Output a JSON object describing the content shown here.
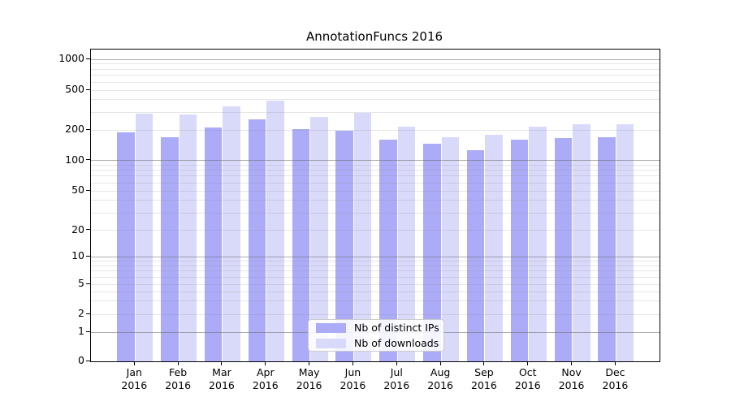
{
  "chart_data": {
    "type": "bar",
    "title": "AnnotationFuncs 2016",
    "categories": [
      "Jan",
      "Feb",
      "Mar",
      "Apr",
      "May",
      "Jun",
      "Jul",
      "Aug",
      "Sep",
      "Oct",
      "Nov",
      "Dec"
    ],
    "category_line2": "2016",
    "series": [
      {
        "name": "Nb of distinct IPs",
        "color": "#ababf8",
        "values": [
          188,
          170,
          210,
          255,
          202,
          198,
          160,
          145,
          126,
          160,
          167,
          168
        ]
      },
      {
        "name": "Nb of downloads",
        "color": "#d9d9fa",
        "values": [
          290,
          285,
          345,
          390,
          272,
          297,
          215,
          170,
          180,
          214,
          230,
          226
        ]
      }
    ],
    "yscale": "symlog",
    "ylim": [
      0,
      1250
    ],
    "yticks": [
      0,
      1,
      2,
      5,
      10,
      20,
      50,
      100,
      200,
      500,
      1000
    ],
    "grid": "both",
    "legend_position": "lower-center",
    "colors": {
      "bar_dark": "#ababf8",
      "bar_light": "#d9d9fa",
      "grid_major": "#8c8c8c",
      "grid_minor": "#dedede",
      "axis": "#000000",
      "text": "#000000",
      "legend_border": "#cccccc"
    }
  }
}
